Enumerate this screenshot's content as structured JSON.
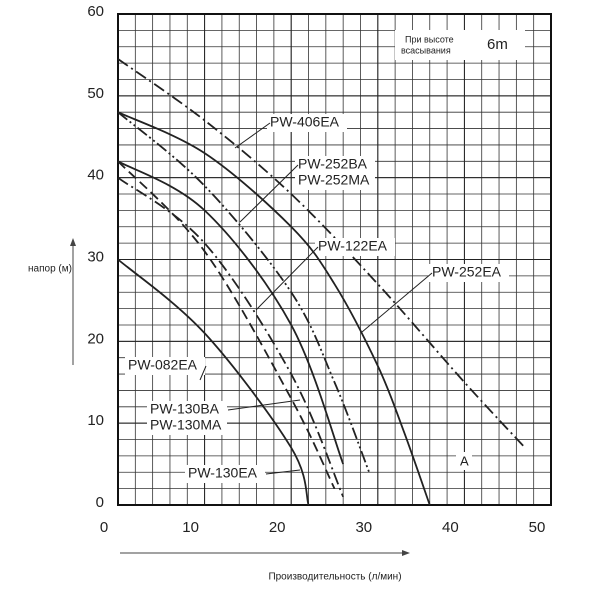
{
  "chart_data": {
    "type": "line",
    "y_label": "напор (м)",
    "x_label": "Производительность (л/мин)",
    "annotations": [
      "При высоте",
      "всасывания",
      "6m",
      "A"
    ],
    "xlim": [
      0,
      50
    ],
    "xticks": [
      0,
      10,
      20,
      30,
      40,
      50
    ],
    "ylim": [
      0,
      60
    ],
    "yticks": [
      0,
      10,
      20,
      30,
      40,
      50,
      60
    ],
    "grid": true,
    "series": [
      {
        "name": [
          "PW-406EA"
        ],
        "color": "#222222",
        "dash": "dashdot",
        "x": [
          0,
          10,
          20,
          30,
          40,
          47
        ],
        "values": [
          54.5,
          47,
          38,
          27,
          15,
          7
        ]
      },
      {
        "name": [
          "PW-252BA",
          "PW-252MA"
        ],
        "color": "#222222",
        "dash": "dashdotdot",
        "x": [
          0,
          10,
          20,
          25,
          29
        ],
        "values": [
          48,
          39,
          26,
          15,
          4
        ]
      },
      {
        "name": [
          "PW-122EA"
        ],
        "color": "#222222",
        "dash": "solid",
        "x": [
          0,
          10,
          20,
          26
        ],
        "values": [
          42,
          36,
          22,
          5
        ]
      },
      {
        "name": [
          "PW-252EA"
        ],
        "color": "#222222",
        "dash": "solid",
        "x": [
          0,
          10,
          20,
          25,
          30,
          33,
          36
        ],
        "values": [
          48,
          43,
          34,
          27,
          17,
          9,
          0
        ]
      },
      {
        "name": [
          "PW-082EA"
        ],
        "color": "#222222",
        "dash": "solid",
        "x": [
          0,
          10,
          20,
          22
        ],
        "values": [
          30,
          21,
          7,
          0
        ]
      },
      {
        "name": [
          "PW-130BA",
          "PW-130MA"
        ],
        "color": "#222222",
        "dash": "dash",
        "x": [
          0,
          10,
          20,
          25
        ],
        "values": [
          42,
          31,
          13,
          2
        ]
      },
      {
        "name": [
          "PW-130EA"
        ],
        "color": "#222222",
        "dash": "dashdot",
        "x": [
          0,
          10,
          20,
          26
        ],
        "values": [
          40,
          32,
          16,
          1
        ]
      }
    ]
  }
}
